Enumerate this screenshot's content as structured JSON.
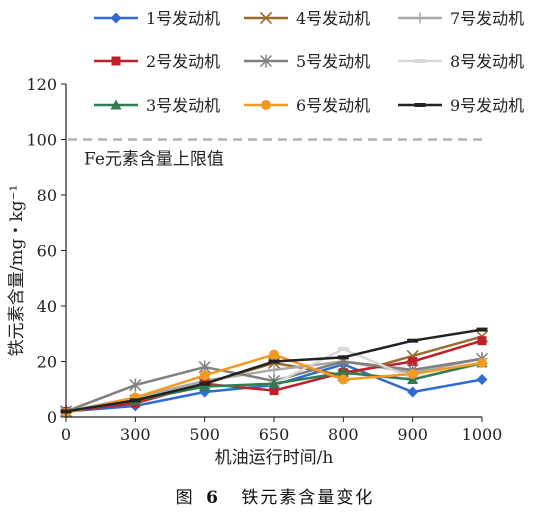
{
  "caption": {
    "fig": "图",
    "num": "6",
    "title": "铁元素含量变化"
  },
  "chart_data": {
    "type": "line",
    "xlabel": "机油运行时间/h",
    "ylabel": "铁元素含量/mg・kg⁻¹",
    "categories": [
      "0",
      "300",
      "500",
      "650",
      "800",
      "900",
      "1000"
    ],
    "yticks": [
      "0",
      "20",
      "40",
      "60",
      "80",
      "100",
      "120"
    ],
    "ylim": [
      0,
      120
    ],
    "grid": false,
    "legend_position": "top",
    "reference_line": {
      "y": 100,
      "label": "Fe元素含量上限值",
      "color": "#b3b3b3"
    },
    "series": [
      {
        "name": "1号发动机",
        "marker": "diamond",
        "color": "#2f6bd1",
        "values": [
          2,
          4,
          9,
          11.5,
          19,
          9,
          13.5
        ]
      },
      {
        "name": "4号发动机",
        "marker": "x",
        "color": "#9c6b2e",
        "values": [
          2,
          6,
          12,
          19.5,
          15,
          22,
          29
        ]
      },
      {
        "name": "7号发动机",
        "marker": "plus",
        "color": "#a8a8a8",
        "values": [
          2,
          7,
          13,
          17,
          20,
          16,
          21
        ]
      },
      {
        "name": "2号发动机",
        "marker": "square",
        "color": "#c0202a",
        "values": [
          2,
          5,
          12,
          9.5,
          16,
          20,
          27.5
        ]
      },
      {
        "name": "5号发动机",
        "marker": "star",
        "color": "#808080",
        "values": [
          2,
          11.5,
          18,
          13,
          20,
          17,
          21
        ]
      },
      {
        "name": "8号发动机",
        "marker": "dash",
        "color": "#d8d8d8",
        "values": [
          2,
          6,
          11,
          12,
          24.5,
          14,
          19
        ]
      },
      {
        "name": "3号发动机",
        "marker": "triangle",
        "color": "#2f7d52",
        "values": [
          2,
          6,
          11,
          12,
          16,
          13.5,
          19.5
        ]
      },
      {
        "name": "6号发动机",
        "marker": "circle",
        "color": "#f29b24",
        "values": [
          1.5,
          7,
          15,
          22.5,
          13.5,
          15.5,
          19.5
        ]
      },
      {
        "name": "9号发动机",
        "marker": "dash",
        "color": "#222222",
        "values": [
          2,
          6,
          12,
          20,
          21.5,
          27.5,
          31.5
        ]
      }
    ]
  }
}
